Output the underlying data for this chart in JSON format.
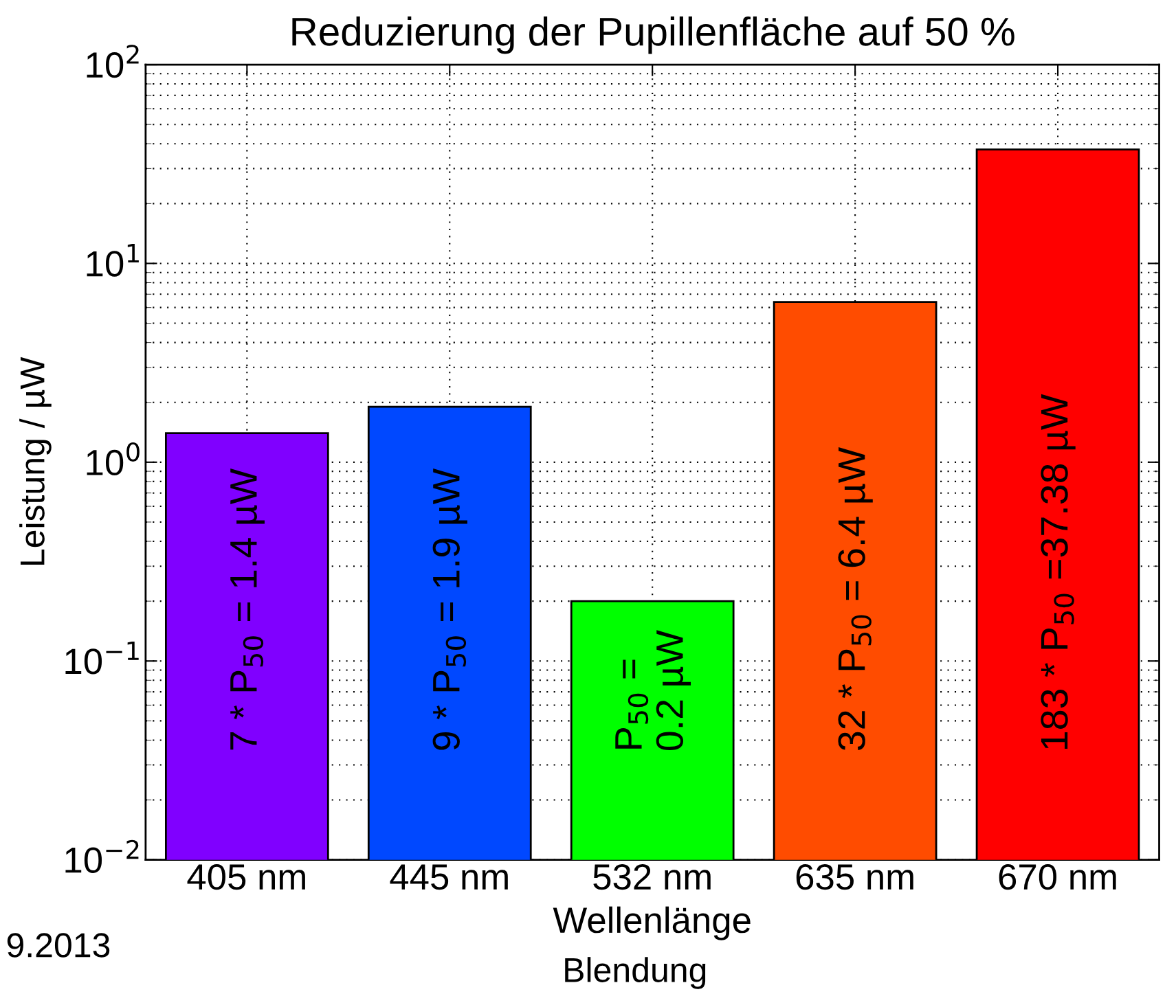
{
  "chart_data": {
    "type": "bar",
    "title": "Reduzierung der Pupillenfläche auf 50 %",
    "xlabel": "Wellenlänge",
    "ylabel": "Leistung / µW",
    "categories": [
      "405 nm",
      "445 nm",
      "532 nm",
      "635 nm",
      "670 nm"
    ],
    "values": [
      1.4,
      1.9,
      0.2,
      6.4,
      37.38
    ],
    "colors": [
      "#8000ff",
      "#0048ff",
      "#00ff00",
      "#ff4c00",
      "#ff0000"
    ],
    "value_labels": [
      "7 * P$_{50}$ = 1.4 µW",
      "9 * P$_{50}$ = 1.9 µW",
      "P$_{50}$ =\n0.2 µW",
      "32 * P$_{50}$ = 6.4 µW",
      "183 * P$_{50}$ =37.38 µW"
    ],
    "log": "y",
    "ylim": [
      0.01,
      100
    ],
    "yticks": [
      {
        "value": 0.01,
        "label": "10$^{−2}$"
      },
      {
        "value": 0.1,
        "label": "10$^{−1}$"
      },
      {
        "value": 1,
        "label": "10$^{0}$"
      },
      {
        "value": 10,
        "label": "10$^{1}$"
      },
      {
        "value": 100,
        "label": "10$^{2}$"
      }
    ],
    "grid": true,
    "legend": false,
    "annotations": [
      "9.2013",
      "Blendung"
    ]
  }
}
